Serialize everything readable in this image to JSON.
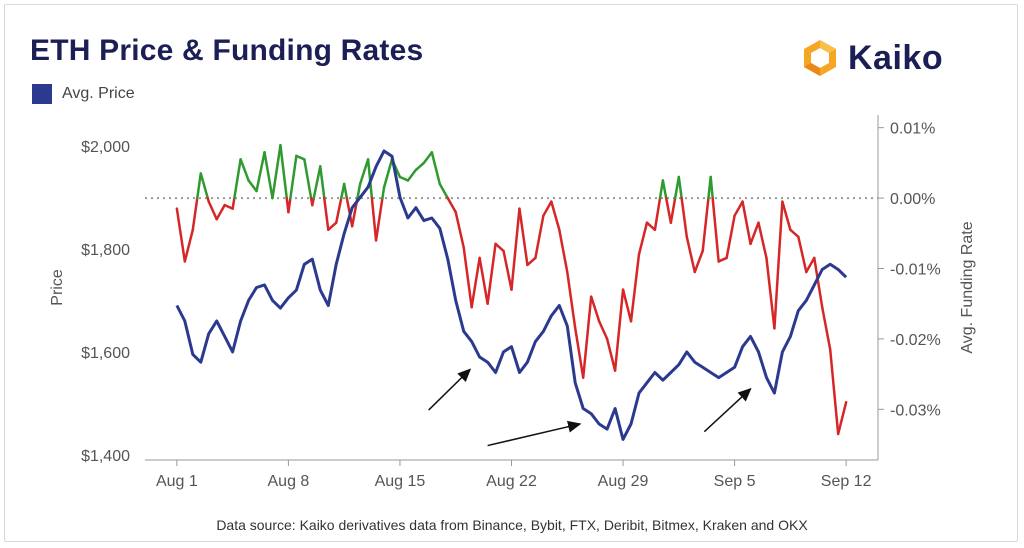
{
  "header": {
    "title": "ETH Price & Funding Rates",
    "logo_text": "Kaiko"
  },
  "legend": {
    "label": "Avg. Price"
  },
  "footer": {
    "source": "Data source: Kaiko derivatives data from Binance, Bybit, FTX, Deribit, Bitmex, Kraken and OKX"
  },
  "colors": {
    "price": "#2b3a8f",
    "funding_positive": "#2f9a2f",
    "funding_negative": "#d62728",
    "title": "#1b1f55",
    "logo_orange": "#f5a623"
  },
  "chart_data": {
    "type": "line",
    "title": "ETH Price & Funding Rates",
    "xlabel": "",
    "ylabel": "Price",
    "y2label": "Avg. Funding Rate",
    "x_ticks": [
      "Aug 1",
      "Aug 8",
      "Aug 15",
      "Aug 22",
      "Aug 29",
      "Sep 5",
      "Sep 12"
    ],
    "x_tick_days": [
      0,
      7,
      14,
      21,
      28,
      35,
      42
    ],
    "xlim": [
      -2,
      44
    ],
    "y_ticks": [
      "$1,400",
      "$1,600",
      "$1,800",
      "$2,000"
    ],
    "y_tick_values": [
      1400,
      1600,
      1800,
      2000
    ],
    "ylim": [
      1390,
      2060
    ],
    "y2_ticks": [
      "0.01%",
      "0.00%",
      "-0.01%",
      "-0.02%",
      "-0.03%"
    ],
    "y2_tick_values": [
      0.01,
      0.0,
      -0.01,
      -0.02,
      -0.03
    ],
    "y2lim": [
      -0.0372,
      0.0118
    ],
    "zero_line": 0.0,
    "annotations": [
      {
        "type": "arrow",
        "from": [
          15.8,
          1487
        ],
        "to": [
          18.4,
          1566
        ]
      },
      {
        "type": "arrow",
        "from": [
          19.5,
          1418
        ],
        "to": [
          25.3,
          1460
        ]
      },
      {
        "type": "arrow",
        "from": [
          33.1,
          1445
        ],
        "to": [
          36.0,
          1528
        ]
      }
    ],
    "series": [
      {
        "name": "Avg. Price",
        "axis": "left",
        "x": [
          0,
          0.5,
          1,
          1.5,
          2,
          2.5,
          3,
          3.5,
          4,
          4.5,
          5,
          5.5,
          6,
          6.5,
          7,
          7.5,
          8,
          8.5,
          9,
          9.5,
          10,
          10.5,
          11,
          11.5,
          12,
          12.5,
          13,
          13.5,
          14,
          14.5,
          15,
          15.5,
          16,
          16.5,
          17,
          17.5,
          18,
          18.5,
          19,
          19.5,
          20,
          20.5,
          21,
          21.5,
          22,
          22.5,
          23,
          23.5,
          24,
          24.5,
          25,
          25.5,
          26,
          26.5,
          27,
          27.5,
          28,
          28.5,
          29,
          29.5,
          30,
          30.5,
          31,
          31.5,
          32,
          32.5,
          33,
          33.5,
          34,
          34.5,
          35,
          35.5,
          36,
          36.5,
          37,
          37.5,
          38,
          38.5,
          39,
          39.5,
          40,
          40.5,
          41,
          41.5,
          42
        ],
        "values": [
          1690,
          1660,
          1595,
          1580,
          1635,
          1660,
          1630,
          1600,
          1660,
          1700,
          1725,
          1730,
          1700,
          1685,
          1705,
          1720,
          1770,
          1780,
          1720,
          1690,
          1770,
          1830,
          1880,
          1900,
          1920,
          1960,
          1990,
          1980,
          1900,
          1860,
          1880,
          1855,
          1860,
          1840,
          1780,
          1700,
          1640,
          1620,
          1590,
          1580,
          1560,
          1600,
          1610,
          1560,
          1580,
          1620,
          1640,
          1670,
          1690,
          1650,
          1540,
          1490,
          1480,
          1460,
          1450,
          1490,
          1430,
          1460,
          1520,
          1540,
          1560,
          1545,
          1560,
          1575,
          1600,
          1580,
          1570,
          1560,
          1550,
          1560,
          1570,
          1610,
          1630,
          1600,
          1550,
          1520,
          1600,
          1630,
          1680,
          1700,
          1730,
          1760,
          1770,
          1760,
          1745
        ]
      },
      {
        "name": "Avg. Funding Rate",
        "axis": "right",
        "x": [
          0,
          0.5,
          1,
          1.5,
          2,
          2.5,
          3,
          3.5,
          4,
          4.5,
          5,
          5.5,
          6,
          6.5,
          7,
          7.5,
          8,
          8.5,
          9,
          9.5,
          10,
          10.5,
          11,
          11.5,
          12,
          12.5,
          13,
          13.5,
          14,
          14.5,
          15,
          15.5,
          16,
          16.5,
          17,
          17.5,
          18,
          18.5,
          19,
          19.5,
          20,
          20.5,
          21,
          21.5,
          22,
          22.5,
          23,
          23.5,
          24,
          24.5,
          25,
          25.5,
          26,
          26.5,
          27,
          27.5,
          28,
          28.5,
          29,
          29.5,
          30,
          30.5,
          31,
          31.5,
          32,
          32.5,
          33,
          33.5,
          34,
          34.5,
          35,
          35.5,
          36,
          36.5,
          37,
          37.5,
          38,
          38.5,
          39,
          39.5,
          40,
          40.5,
          41,
          41.5,
          42
        ],
        "values": [
          -0.0015,
          -0.009,
          -0.0045,
          0.0035,
          -0.0005,
          -0.003,
          -0.001,
          -0.0015,
          0.0055,
          0.0025,
          0.001,
          0.0065,
          0.0,
          0.0075,
          -0.002,
          0.006,
          0.0055,
          -0.001,
          0.0045,
          -0.0045,
          -0.0035,
          0.002,
          -0.004,
          0.002,
          0.0055,
          -0.006,
          0.0015,
          0.0055,
          0.003,
          0.0025,
          0.004,
          0.005,
          0.0065,
          0.002,
          0.0,
          -0.002,
          -0.007,
          -0.0155,
          -0.0085,
          -0.015,
          -0.0065,
          -0.0075,
          -0.013,
          -0.0015,
          -0.0095,
          -0.0085,
          -0.0025,
          -0.0005,
          -0.0045,
          -0.0105,
          -0.0185,
          -0.0255,
          -0.014,
          -0.0175,
          -0.02,
          -0.0245,
          -0.013,
          -0.0175,
          -0.008,
          -0.0035,
          -0.0045,
          0.0025,
          -0.0035,
          0.003,
          -0.0055,
          -0.0105,
          -0.0075,
          0.003,
          -0.009,
          -0.0085,
          -0.0025,
          -0.0005,
          -0.0065,
          -0.0035,
          -0.0085,
          -0.0185,
          -0.0005,
          -0.0045,
          -0.0055,
          -0.0105,
          -0.0085,
          -0.0155,
          -0.0215,
          -0.0335,
          -0.029
        ]
      }
    ]
  }
}
